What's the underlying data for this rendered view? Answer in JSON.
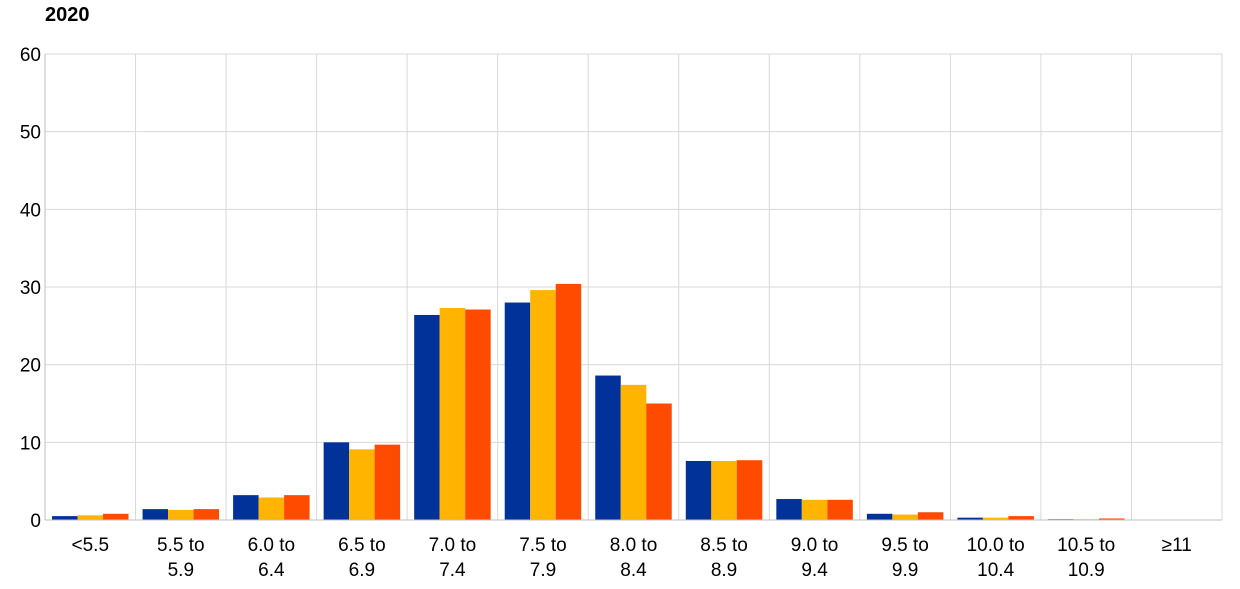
{
  "chart_data": {
    "type": "bar",
    "title": "2020",
    "xlabel": "",
    "ylabel": "",
    "ylim": [
      0,
      60
    ],
    "yticks": [
      0,
      10,
      20,
      30,
      40,
      50,
      60
    ],
    "grid": true,
    "legend": "none",
    "categories": [
      [
        "<5.5"
      ],
      [
        "5.5 to",
        "5.9"
      ],
      [
        "6.0 to",
        "6.4"
      ],
      [
        "6.5 to",
        "6.9"
      ],
      [
        "7.0 to",
        "7.4"
      ],
      [
        "7.5 to",
        "7.9"
      ],
      [
        "8.0 to",
        "8.4"
      ],
      [
        "8.5 to",
        "8.9"
      ],
      [
        "9.0 to",
        "9.4"
      ],
      [
        "9.5 to",
        "9.9"
      ],
      [
        "10.0 to",
        "10.4"
      ],
      [
        "10.5 to",
        "10.9"
      ],
      [
        "≥11"
      ]
    ],
    "series": [
      {
        "color": "#003299",
        "values": [
          0.5,
          1.4,
          3.2,
          10.0,
          26.4,
          28.0,
          18.6,
          7.6,
          2.7,
          0.8,
          0.3,
          0.1,
          0.0
        ]
      },
      {
        "color": "#FFB400",
        "values": [
          0.6,
          1.3,
          2.9,
          9.1,
          27.3,
          29.6,
          17.4,
          7.6,
          2.6,
          0.7,
          0.3,
          0.1,
          0.0
        ]
      },
      {
        "color": "#FF4B00",
        "values": [
          0.8,
          1.4,
          3.2,
          9.7,
          27.1,
          30.4,
          15.0,
          7.7,
          2.6,
          1.0,
          0.5,
          0.2,
          0.0
        ]
      }
    ]
  }
}
